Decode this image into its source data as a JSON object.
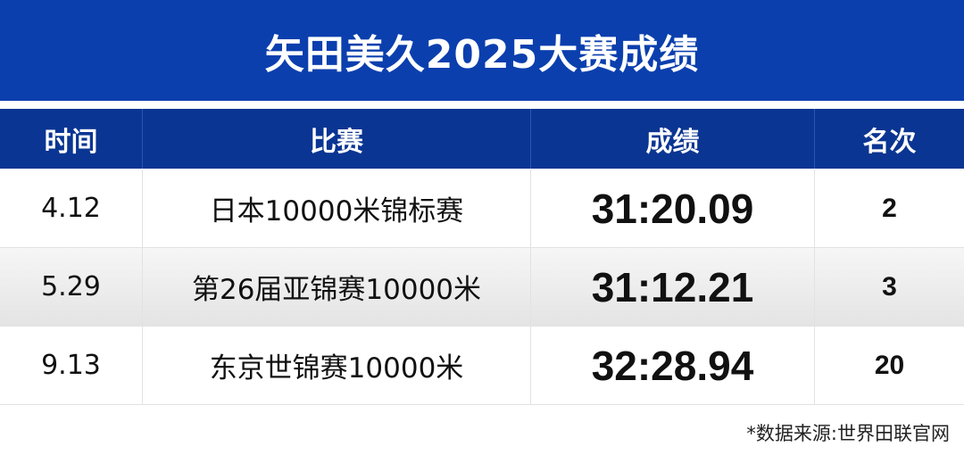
{
  "title": "矢田美久2025大赛成绩",
  "headers": [
    "时间",
    "比赛",
    "成绩",
    "名次"
  ],
  "rows": [
    {
      "date": "4.12",
      "competition": "日本10000米锦标赛",
      "result": "31:20.09",
      "rank": "2"
    },
    {
      "date": "5.29",
      "competition": "第26届亚锦赛10000米",
      "result": "31:12.21",
      "rank": "3"
    },
    {
      "date": "9.13",
      "competition": "东京世锦赛10000米",
      "result": "32:28.94",
      "rank": "20"
    }
  ],
  "footnote": "*数据来源:世界田联官网",
  "colors": {
    "title_bg": "#0b3fae",
    "header_bg": "#0a3592"
  }
}
